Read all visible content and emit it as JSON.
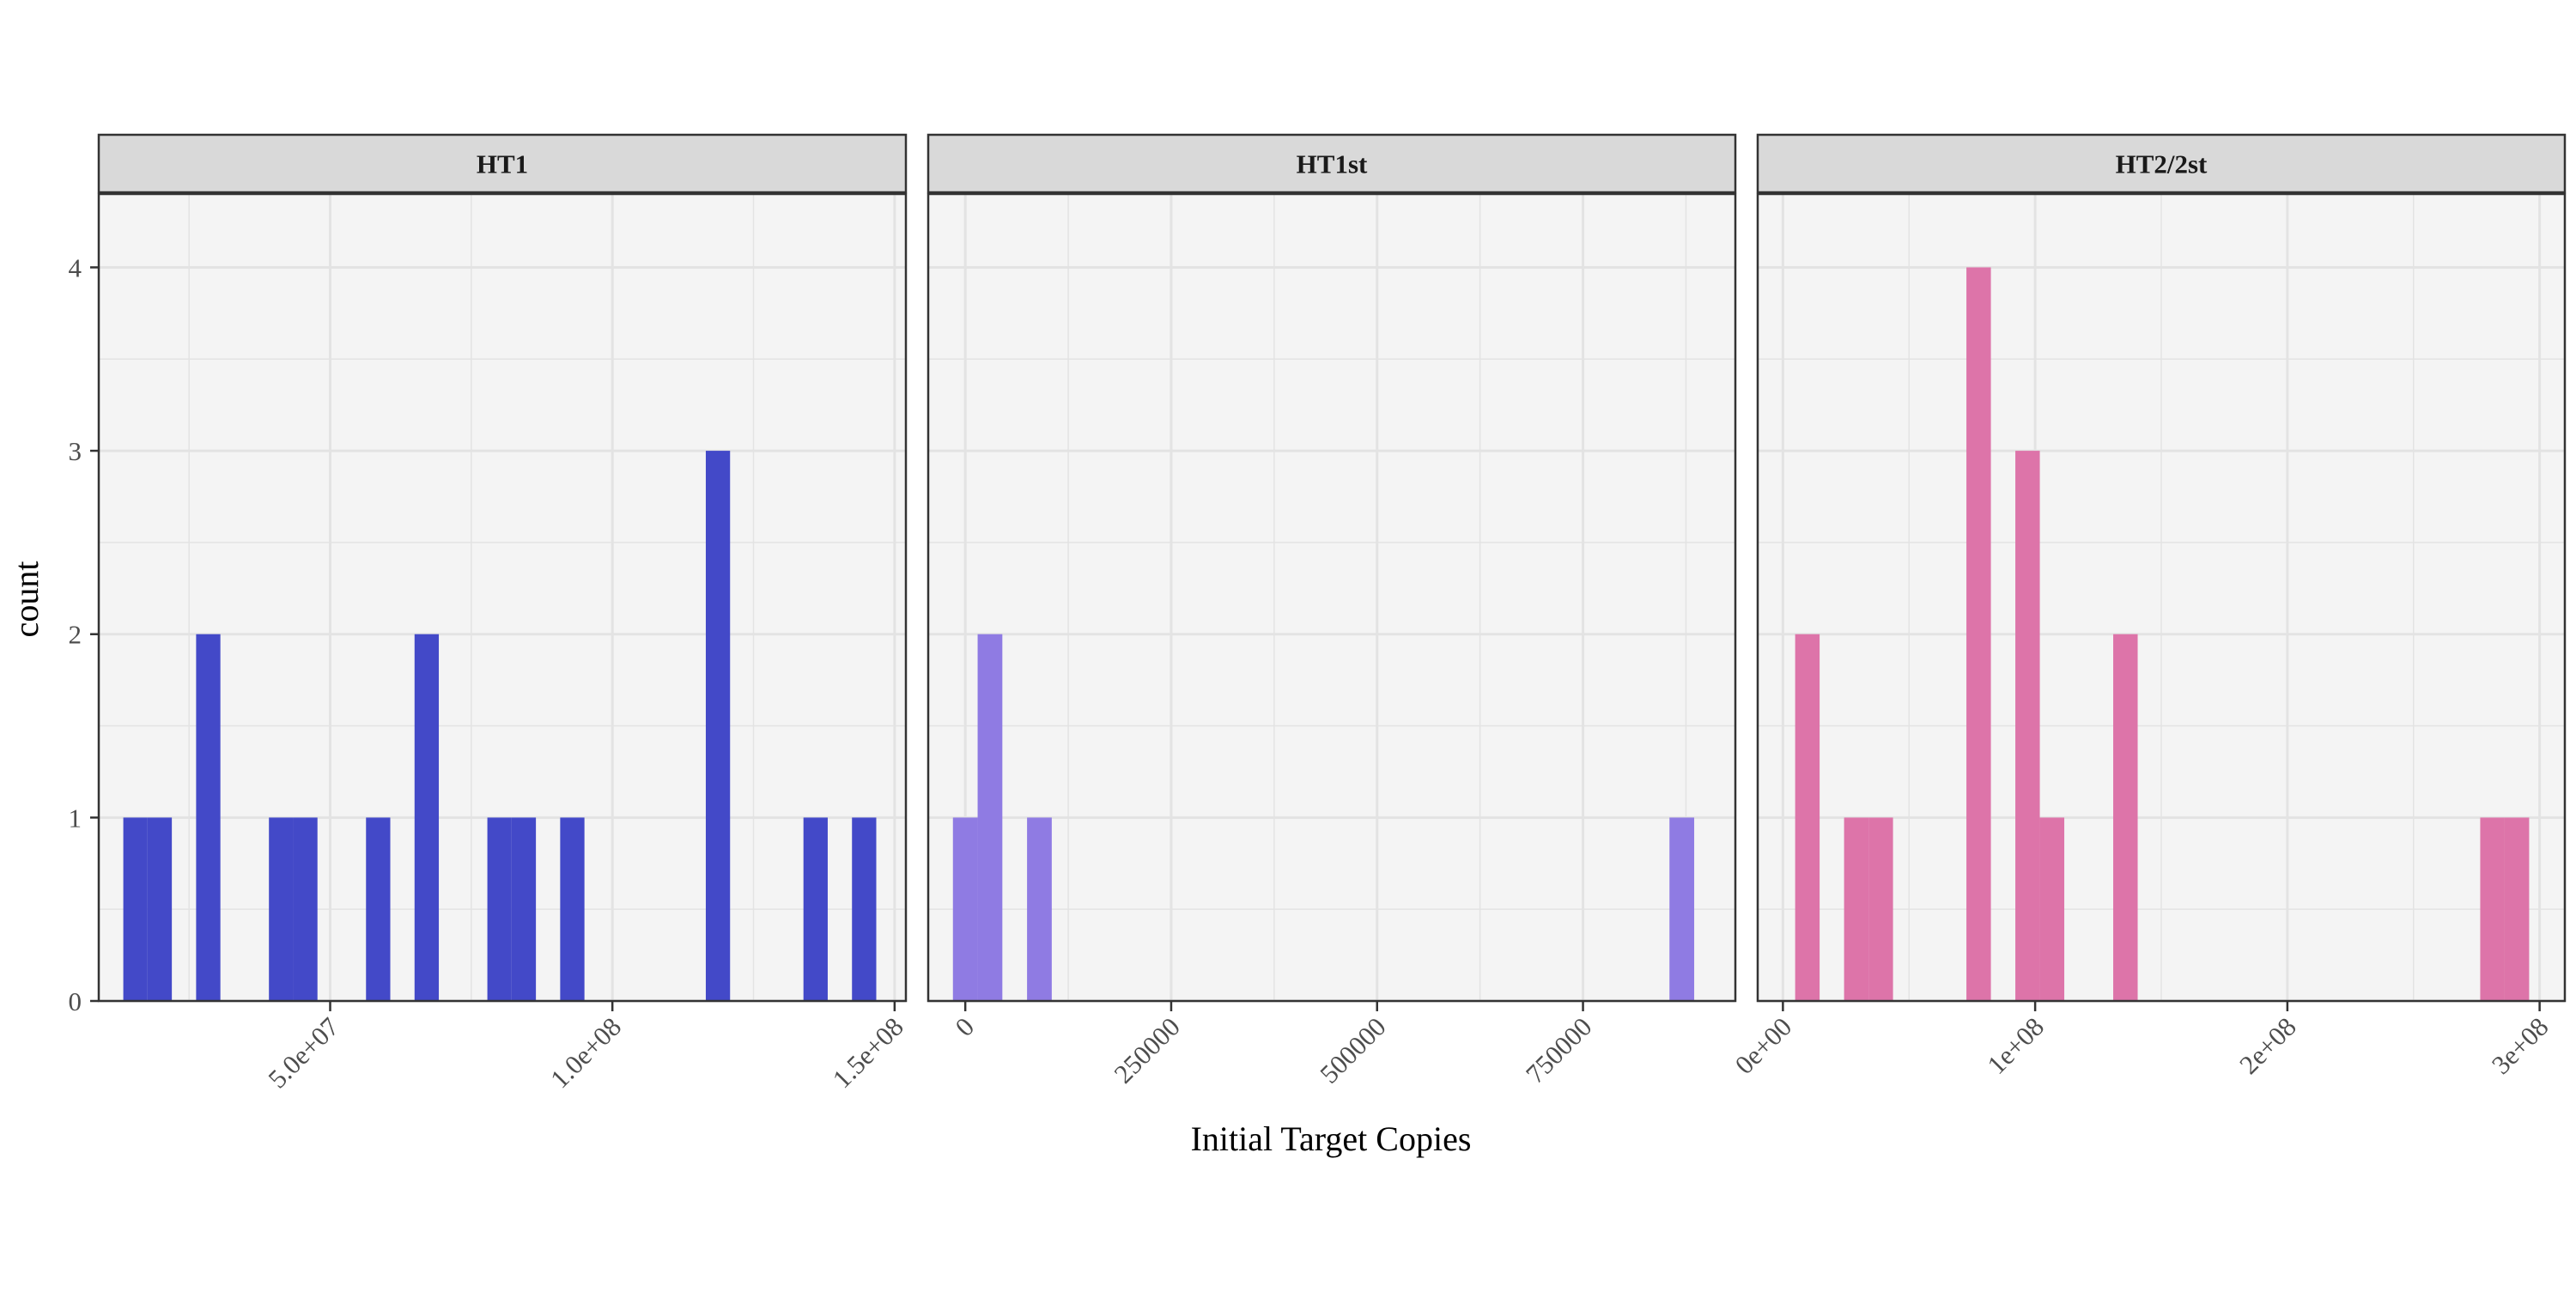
{
  "chart_data": {
    "type": "bar",
    "subtype": "faceted-histogram",
    "xlabel": "Initial Target Copies",
    "ylabel": "count",
    "ylim": [
      0,
      4.4
    ],
    "y_ticks": [
      0,
      1,
      2,
      3,
      4
    ],
    "y_tick_labels": [
      "0",
      "1",
      "2",
      "3",
      "4"
    ],
    "grid": true,
    "legend": "none",
    "panel_background": "#f4f4f4",
    "strip_background": "#d9d9d9",
    "grid_color": "#e3e3e3",
    "facets": [
      {
        "label": "HT1",
        "color": "#4349c8",
        "xlim": [
          9000000,
          152000000
        ],
        "x_ticks": [
          50000000,
          100000000,
          150000000
        ],
        "x_tick_labels": [
          "5.0e+07",
          "1.0e+08",
          "1.5e+08"
        ],
        "bin_width": 4300000,
        "bins": [
          {
            "x": 15500000,
            "count": 1
          },
          {
            "x": 19800000,
            "count": 1
          },
          {
            "x": 28400000,
            "count": 2
          },
          {
            "x": 41300000,
            "count": 1
          },
          {
            "x": 45600000,
            "count": 1
          },
          {
            "x": 58500000,
            "count": 1
          },
          {
            "x": 67100000,
            "count": 2
          },
          {
            "x": 80000000,
            "count": 1
          },
          {
            "x": 84300000,
            "count": 1
          },
          {
            "x": 92900000,
            "count": 1
          },
          {
            "x": 118700000,
            "count": 3
          },
          {
            "x": 136000000,
            "count": 1
          },
          {
            "x": 144600000,
            "count": 1
          }
        ]
      },
      {
        "label": "HT1st",
        "color": "#8f7be3",
        "xlim": [
          -45000,
          935000
        ],
        "x_ticks": [
          0,
          250000,
          500000,
          750000
        ],
        "x_tick_labels": [
          "0",
          "250000",
          "500000",
          "750000"
        ],
        "bin_width": 30000,
        "bins": [
          {
            "x": 0,
            "count": 1
          },
          {
            "x": 30000,
            "count": 2
          },
          {
            "x": 90000,
            "count": 1
          },
          {
            "x": 870000,
            "count": 1
          }
        ]
      },
      {
        "label": "HT2/2st",
        "color": "#dd74a9",
        "xlim": [
          -10000000,
          310000000
        ],
        "x_ticks": [
          0,
          100000000,
          200000000,
          300000000
        ],
        "x_tick_labels": [
          "0e+00",
          "1e+08",
          "2e+08",
          "3e+08"
        ],
        "bin_width": 9700000,
        "bins": [
          {
            "x": 9700000,
            "count": 2
          },
          {
            "x": 29100000,
            "count": 1
          },
          {
            "x": 38800000,
            "count": 1
          },
          {
            "x": 77600000,
            "count": 4
          },
          {
            "x": 97000000,
            "count": 3
          },
          {
            "x": 106700000,
            "count": 1
          },
          {
            "x": 135800000,
            "count": 2
          },
          {
            "x": 281300000,
            "count": 1
          },
          {
            "x": 291000000,
            "count": 1
          }
        ]
      }
    ]
  }
}
